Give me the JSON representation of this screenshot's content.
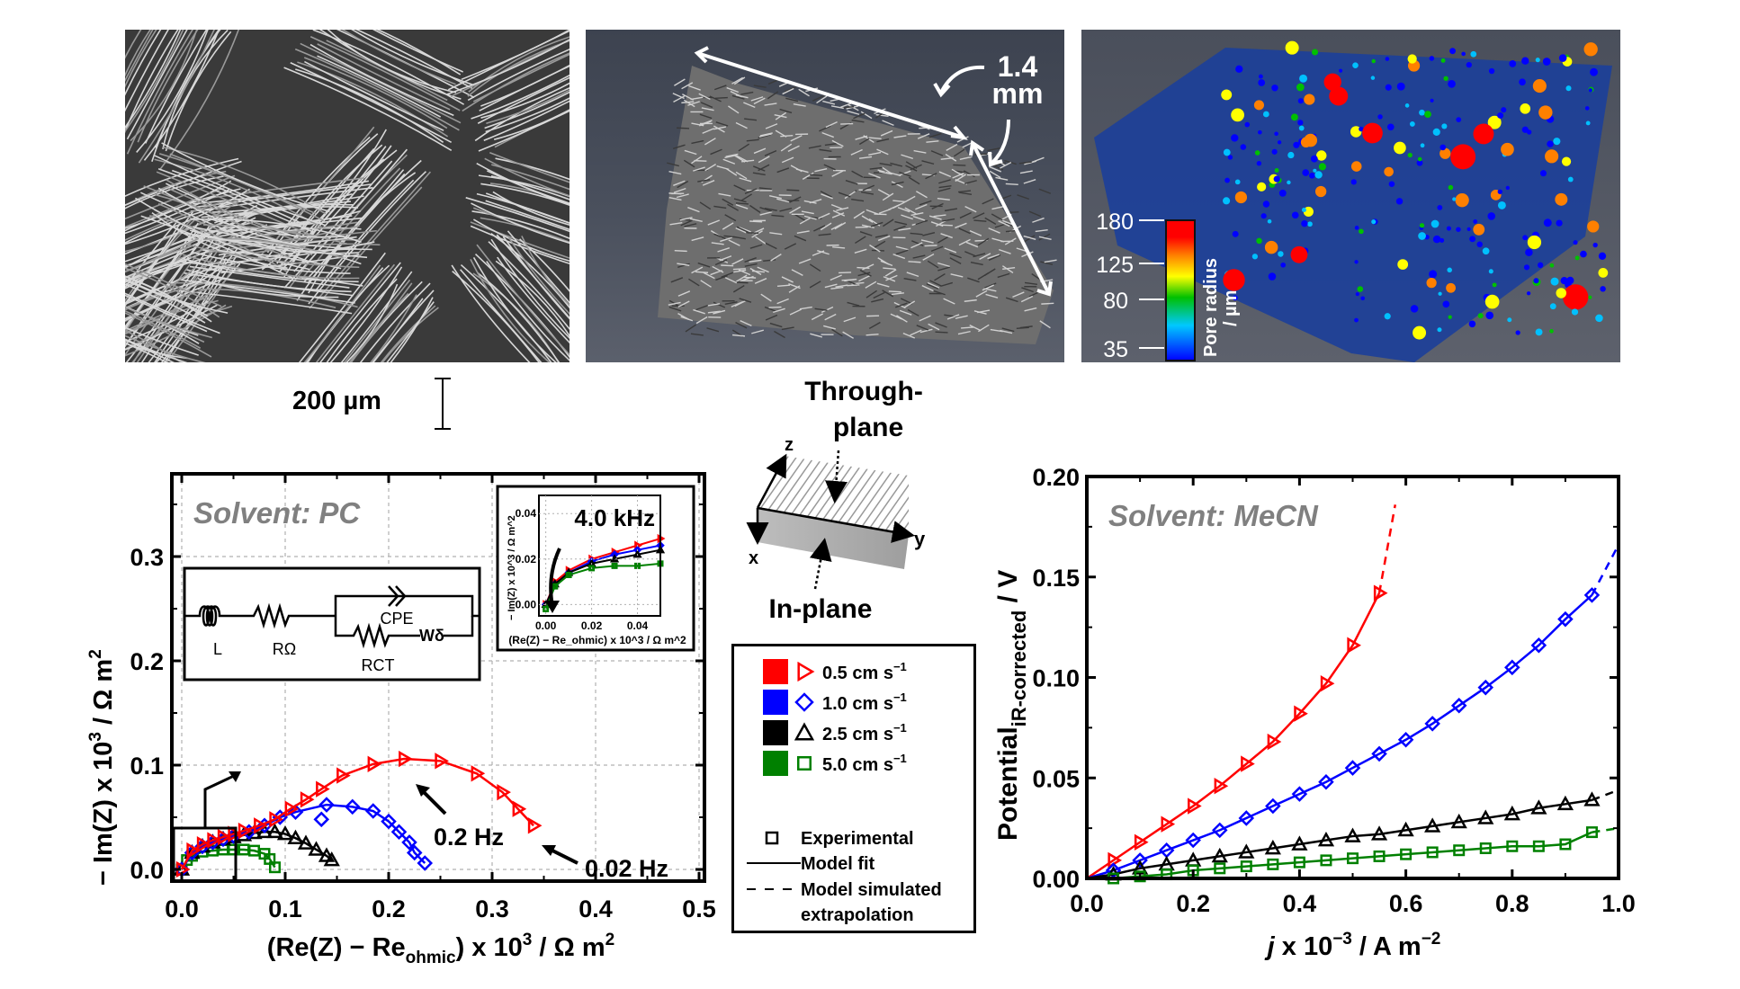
{
  "figure": {
    "panels": {
      "sem": {
        "name": "SEM image of carbon cloth fibres"
      },
      "micro_ct": {
        "name": "3D micro-CT reconstruction",
        "dimension_label_1": "1.4",
        "dimension_label_2": "mm"
      },
      "pore_network": {
        "name": "Pore network model",
        "colorbar": {
          "title": "Pore radius",
          "unit": "/ µm",
          "ticks": [
            "180",
            "125",
            "80",
            "35"
          ],
          "colors": [
            "#ff0000",
            "#ff8000",
            "#ffff00",
            "#00c000",
            "#00c0ff",
            "#0000ff"
          ]
        }
      }
    },
    "scale_bar": {
      "label": "200 µm"
    },
    "orientation_diagram": {
      "through_plane": [
        "Through-",
        "plane"
      ],
      "in_plane": "In-plane",
      "axes": {
        "x": "x",
        "y": "y",
        "z": "z"
      }
    },
    "legend": {
      "series": [
        {
          "label": "0.5 cm s",
          "sup": "−1",
          "color": "#ff0000",
          "marker": "triangle-right"
        },
        {
          "label": "1.0 cm s",
          "sup": "−1",
          "color": "#0000ff",
          "marker": "diamond"
        },
        {
          "label": "2.5 cm s",
          "sup": "−1",
          "color": "#000000",
          "marker": "triangle-up"
        },
        {
          "label": "5.0 cm s",
          "sup": "−1",
          "color": "#008000",
          "marker": "square"
        }
      ],
      "styles": [
        {
          "label": "Experimental"
        },
        {
          "label": "Model fit"
        },
        {
          "label": "Model simulated"
        },
        {
          "label": "extrapolation"
        }
      ]
    }
  },
  "chart_data": [
    {
      "type": "scatter",
      "title": "Solvent: PC",
      "xlabel": "(Re(Z) − Re_ohmic) x 10^3 / Ω m^2",
      "ylabel": "− Im(Z) x 10^3 / Ω m^2",
      "xlim": [
        0.0,
        0.5
      ],
      "ylim": [
        -0.01,
        0.38
      ],
      "xticks": [
        "0.0",
        "0.1",
        "0.2",
        "0.3",
        "0.4",
        "0.5"
      ],
      "yticks": [
        "0.0",
        "0.1",
        "0.2",
        "0.3"
      ],
      "grid": true,
      "annotations": [
        "0.2 Hz",
        "0.02 Hz"
      ],
      "circuit": {
        "labels": [
          "L",
          "RΩ",
          "CPE",
          "RCT",
          "Wδ"
        ]
      },
      "series": [
        {
          "name": "0.5 cm s−1",
          "color": "#ff0000",
          "x": [
            0.0,
            0.01,
            0.02,
            0.03,
            0.04,
            0.05,
            0.06,
            0.075,
            0.09,
            0.105,
            0.12,
            0.135,
            0.155,
            0.185,
            0.215,
            0.25,
            0.285,
            0.31,
            0.325,
            0.34
          ],
          "y": [
            0.0,
            0.018,
            0.024,
            0.028,
            0.031,
            0.034,
            0.037,
            0.042,
            0.048,
            0.058,
            0.067,
            0.077,
            0.09,
            0.101,
            0.106,
            0.104,
            0.092,
            0.074,
            0.058,
            0.042
          ]
        },
        {
          "name": "1.0 cm s−1",
          "color": "#0000ff",
          "x": [
            0.0,
            0.01,
            0.02,
            0.03,
            0.04,
            0.05,
            0.065,
            0.08,
            0.095,
            0.11,
            0.14,
            0.165,
            0.185,
            0.2,
            0.21,
            0.22,
            0.225,
            0.235,
            0.135
          ],
          "y": [
            0.0,
            0.016,
            0.022,
            0.026,
            0.029,
            0.032,
            0.036,
            0.042,
            0.05,
            0.055,
            0.062,
            0.06,
            0.056,
            0.046,
            0.036,
            0.026,
            0.016,
            0.006,
            0.048
          ]
        },
        {
          "name": "2.5 cm s−1",
          "color": "#000000",
          "x": [
            0.0,
            0.01,
            0.02,
            0.03,
            0.04,
            0.05,
            0.06,
            0.07,
            0.08,
            0.09,
            0.1,
            0.11,
            0.12,
            0.13,
            0.14,
            0.145
          ],
          "y": [
            0.0,
            0.016,
            0.022,
            0.026,
            0.029,
            0.031,
            0.033,
            0.035,
            0.036,
            0.036,
            0.034,
            0.03,
            0.025,
            0.019,
            0.013,
            0.009
          ]
        },
        {
          "name": "5.0 cm s−1",
          "color": "#008000",
          "x": [
            0.0,
            0.005,
            0.01,
            0.02,
            0.03,
            0.04,
            0.05,
            0.06,
            0.07,
            0.08,
            0.085,
            0.09
          ],
          "y": [
            0.0,
            0.009,
            0.013,
            0.017,
            0.018,
            0.019,
            0.019,
            0.019,
            0.018,
            0.015,
            0.01,
            0.002
          ]
        }
      ],
      "inset": {
        "label": "4.0 kHz",
        "xlabel": "(Re(Z) − Re_ohmic) x 10^3 / Ω m^2",
        "ylabel": "− Im(Z) x 10^3 / Ω m^2",
        "xlim": [
          -0.003,
          0.05
        ],
        "ylim": [
          -0.005,
          0.048
        ],
        "xticks": [
          "0.00",
          "0.02",
          "0.04"
        ],
        "yticks": [
          "0.00",
          "0.02",
          "0.04"
        ],
        "series": [
          {
            "name": "0.5 cm s−1",
            "color": "#ff0000",
            "x": [
              0.0,
              0.004,
              0.01,
              0.02,
              0.03,
              0.04,
              0.05
            ],
            "y": [
              0.0,
              0.01,
              0.015,
              0.02,
              0.023,
              0.026,
              0.029
            ]
          },
          {
            "name": "1.0 cm s−1",
            "color": "#0000ff",
            "x": [
              0.0,
              0.004,
              0.01,
              0.02,
              0.03,
              0.04,
              0.05
            ],
            "y": [
              0.0,
              0.009,
              0.014,
              0.019,
              0.022,
              0.024,
              0.026
            ]
          },
          {
            "name": "2.5 cm s−1",
            "color": "#000000",
            "x": [
              0.0,
              0.004,
              0.01,
              0.02,
              0.03,
              0.04,
              0.05
            ],
            "y": [
              0.0,
              0.009,
              0.014,
              0.018,
              0.02,
              0.022,
              0.024
            ]
          },
          {
            "name": "5.0 cm s−1",
            "color": "#008000",
            "x": [
              0.0,
              0.004,
              0.01,
              0.02,
              0.03,
              0.04,
              0.05
            ],
            "y": [
              -0.002,
              0.008,
              0.013,
              0.016,
              0.017,
              0.017,
              0.018
            ]
          }
        ]
      }
    },
    {
      "type": "scatter",
      "title": "Solvent: MeCN",
      "xlabel": "j x 10^−3 / A m^−2",
      "ylabel": "Potential_iR-corrected / V",
      "xlim": [
        0.0,
        1.0
      ],
      "ylim": [
        0.0,
        0.2
      ],
      "xticks": [
        "0.0",
        "0.2",
        "0.4",
        "0.6",
        "0.8",
        "1.0"
      ],
      "yticks": [
        "0.00",
        "0.05",
        "0.10",
        "0.15",
        "0.20"
      ],
      "grid": false,
      "series": [
        {
          "name": "0.5 cm s−1",
          "color": "#ff0000",
          "x": [
            0.05,
            0.1,
            0.15,
            0.2,
            0.25,
            0.3,
            0.35,
            0.4,
            0.45,
            0.5,
            0.55
          ],
          "y": [
            0.009,
            0.018,
            0.027,
            0.036,
            0.046,
            0.057,
            0.068,
            0.082,
            0.097,
            0.116,
            0.142
          ],
          "fit_x_end": 0.55,
          "extrap_x_end": 0.58,
          "extrap_y_end": 0.186
        },
        {
          "name": "1.0 cm s−1",
          "color": "#0000ff",
          "x": [
            0.05,
            0.1,
            0.15,
            0.2,
            0.25,
            0.3,
            0.35,
            0.4,
            0.45,
            0.5,
            0.55,
            0.6,
            0.65,
            0.7,
            0.75,
            0.8,
            0.85,
            0.9,
            0.95
          ],
          "y": [
            0.004,
            0.009,
            0.014,
            0.019,
            0.024,
            0.03,
            0.036,
            0.042,
            0.048,
            0.055,
            0.062,
            0.069,
            0.077,
            0.086,
            0.095,
            0.105,
            0.116,
            0.129,
            0.141
          ],
          "fit_x_end": 0.95,
          "extrap_x_end": 1.0,
          "extrap_y_end": 0.166
        },
        {
          "name": "2.5 cm s−1",
          "color": "#000000",
          "x": [
            0.05,
            0.1,
            0.15,
            0.2,
            0.25,
            0.3,
            0.35,
            0.4,
            0.45,
            0.5,
            0.55,
            0.6,
            0.65,
            0.7,
            0.75,
            0.8,
            0.85,
            0.9,
            0.95
          ],
          "y": [
            0.002,
            0.005,
            0.007,
            0.009,
            0.011,
            0.013,
            0.015,
            0.017,
            0.019,
            0.021,
            0.022,
            0.024,
            0.026,
            0.028,
            0.03,
            0.032,
            0.035,
            0.037,
            0.039
          ],
          "fit_x_end": 0.95,
          "extrap_x_end": 1.0,
          "extrap_y_end": 0.044
        },
        {
          "name": "5.0 cm s−1",
          "color": "#008000",
          "x": [
            0.05,
            0.1,
            0.15,
            0.2,
            0.25,
            0.3,
            0.35,
            0.4,
            0.45,
            0.5,
            0.55,
            0.6,
            0.65,
            0.7,
            0.75,
            0.8,
            0.85,
            0.9,
            0.95
          ],
          "y": [
            0.0,
            0.001,
            0.002,
            0.004,
            0.005,
            0.006,
            0.007,
            0.008,
            0.009,
            0.01,
            0.011,
            0.012,
            0.013,
            0.014,
            0.015,
            0.016,
            0.016,
            0.017,
            0.023
          ],
          "fit_x_end": 0.95,
          "extrap_x_end": 1.0,
          "extrap_y_end": 0.025
        }
      ]
    }
  ]
}
